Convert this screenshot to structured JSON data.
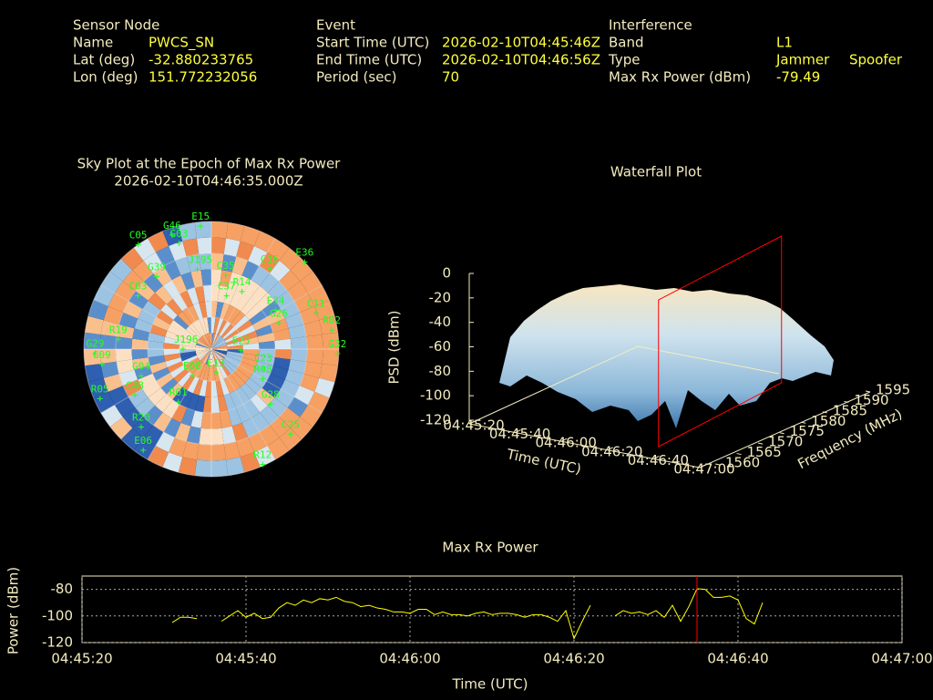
{
  "header": {
    "columns": [
      {
        "title": "Sensor Node",
        "rows": [
          {
            "label": "Name",
            "value": "PWCS_SN"
          },
          {
            "label": "Lat (deg)",
            "value": "-32.880233765"
          },
          {
            "label": "Lon (deg)",
            "value": "151.772232056"
          }
        ]
      },
      {
        "title": "Event",
        "rows": [
          {
            "label": "Start Time (UTC)",
            "value": "2026-02-10T04:45:46Z"
          },
          {
            "label": "End Time (UTC)",
            "value": "2026-02-10T04:46:56Z"
          },
          {
            "label": "Period (sec)",
            "value": 70
          }
        ]
      },
      {
        "title": "Interference",
        "rows": [
          {
            "label": "Band",
            "value": "L1"
          },
          {
            "label": "Type",
            "value": [
              "Jammer",
              "Spoofer"
            ]
          },
          {
            "label": "Max Rx Power (dBm)",
            "value": -79.49
          }
        ]
      }
    ]
  },
  "chart_data": [
    {
      "type": "polar-scatter",
      "title": "Sky Plot at the Epoch of Max Rx Power",
      "subtitle": "2026-02-10T04:46:35.000Z",
      "color": "#22ff22",
      "labels": [
        "E15",
        "G46",
        "G03",
        "C05",
        "E36",
        "G16",
        "C11",
        "R02",
        "G32",
        "E34",
        "G26",
        "R14",
        "C37",
        "C35",
        "J195",
        "G39",
        "C03",
        "R19",
        "G29",
        "G09",
        "R05",
        "G04",
        "C48",
        "R20",
        "E06",
        "J196",
        "E25",
        "E13",
        "C23",
        "R08",
        "G28",
        "C25",
        "R12",
        "R01",
        "E08"
      ],
      "azimuth": [
        355,
        341,
        343,
        325,
        47,
        36,
        71,
        81,
        92,
        59,
        69,
        28,
        16,
        11,
        350,
        323,
        306,
        276,
        268,
        262,
        246,
        249,
        239,
        222,
        214,
        270,
        93,
        169,
        110,
        120,
        133,
        137,
        156,
        212,
        216
      ],
      "elevation": [
        3,
        5,
        12,
        0,
        0,
        20,
        12,
        4,
        1,
        37,
        39,
        44,
        51,
        37,
        33,
        26,
        26,
        24,
        8,
        12,
        4,
        37,
        27,
        16,
        4,
        70,
        69,
        73,
        51,
        48,
        33,
        8,
        1,
        46,
        67
      ]
    },
    {
      "type": "surface",
      "title": "Waterfall Plot",
      "xlabel": "Time (UTC)",
      "ylabel": "Frequency (MHz)",
      "zlabel": "PSD (dBm)",
      "xlim": [
        "04:45:20",
        "04:47:00"
      ],
      "xticks": [
        "04:45:20",
        "04:45:40",
        "04:46:00",
        "04:46:20",
        "04:46:40",
        "04:47:00"
      ],
      "ylim": [
        1560,
        1595
      ],
      "yticks": [
        1560,
        1565,
        1570,
        1575,
        1580,
        1585,
        1590,
        1595
      ],
      "zlim": [
        -120,
        0
      ],
      "zticks": [
        0,
        -20,
        -40,
        -60,
        -80,
        -100,
        -120
      ],
      "marker_x": "04:46:35",
      "marker_color": "#ff0000"
    },
    {
      "type": "line",
      "title": "Max Rx Power",
      "xlabel": "Time (UTC)",
      "ylabel": "Power (dBm)",
      "color": "#ffff00",
      "grid": true,
      "xlim": [
        "04:45:20",
        "04:47:00"
      ],
      "xticks": [
        "04:45:20",
        "04:45:40",
        "04:46:00",
        "04:46:20",
        "04:46:40",
        "04:47:00"
      ],
      "ylim": [
        -120,
        -70
      ],
      "yticks": [
        -120,
        -100,
        -80
      ],
      "marker_x": "04:46:35",
      "marker_color": "#ff0000",
      "x": [
        "04:45:31",
        "04:45:32",
        "04:45:33",
        "04:45:34",
        "04:45:35",
        "04:45:36",
        "04:45:37",
        "04:45:38",
        "04:45:39",
        "04:45:40",
        "04:45:41",
        "04:45:42",
        "04:45:43",
        "04:45:44",
        "04:45:45",
        "04:45:46",
        "04:45:47",
        "04:45:48",
        "04:45:49",
        "04:45:50",
        "04:45:51",
        "04:45:52",
        "04:45:53",
        "04:45:54",
        "04:45:55",
        "04:45:56",
        "04:45:57",
        "04:45:58",
        "04:45:59",
        "04:46:00",
        "04:46:01",
        "04:46:02",
        "04:46:03",
        "04:46:04",
        "04:46:05",
        "04:46:06",
        "04:46:07",
        "04:46:08",
        "04:46:09",
        "04:46:10",
        "04:46:11",
        "04:46:12",
        "04:46:13",
        "04:46:14",
        "04:46:15",
        "04:46:16",
        "04:46:17",
        "04:46:18",
        "04:46:19",
        "04:46:20",
        "04:46:21",
        "04:46:22",
        "04:46:23",
        "04:46:24",
        "04:46:25",
        "04:46:26",
        "04:46:27",
        "04:46:28",
        "04:46:29",
        "04:46:30",
        "04:46:31",
        "04:46:32",
        "04:46:33",
        "04:46:34",
        "04:46:35",
        "04:46:36",
        "04:46:37",
        "04:46:38",
        "04:46:39",
        "04:46:40",
        "04:46:41",
        "04:46:42",
        "04:46:43"
      ],
      "values": [
        -105,
        -101,
        -101,
        -102,
        null,
        null,
        -104,
        -100,
        -96,
        -101,
        -98,
        -102,
        -101,
        -94,
        -90,
        -92,
        -88,
        -90,
        -87,
        -88,
        -86,
        -89,
        -90,
        -93,
        -92,
        -94,
        -95,
        -97,
        -97,
        -98,
        -95,
        -95,
        -99,
        -97,
        -99,
        -99,
        -100,
        -98,
        -97,
        -99,
        -98,
        -98,
        -99,
        -101,
        -99,
        -99,
        -101,
        -104,
        -96,
        -117,
        -104,
        -92,
        null,
        null,
        -100,
        -96,
        -98,
        -97,
        -99,
        -96,
        -101,
        -92,
        -104,
        -93,
        -79.49,
        -80,
        -86,
        -86,
        -85,
        -88,
        -102,
        -106,
        -90
      ]
    }
  ]
}
